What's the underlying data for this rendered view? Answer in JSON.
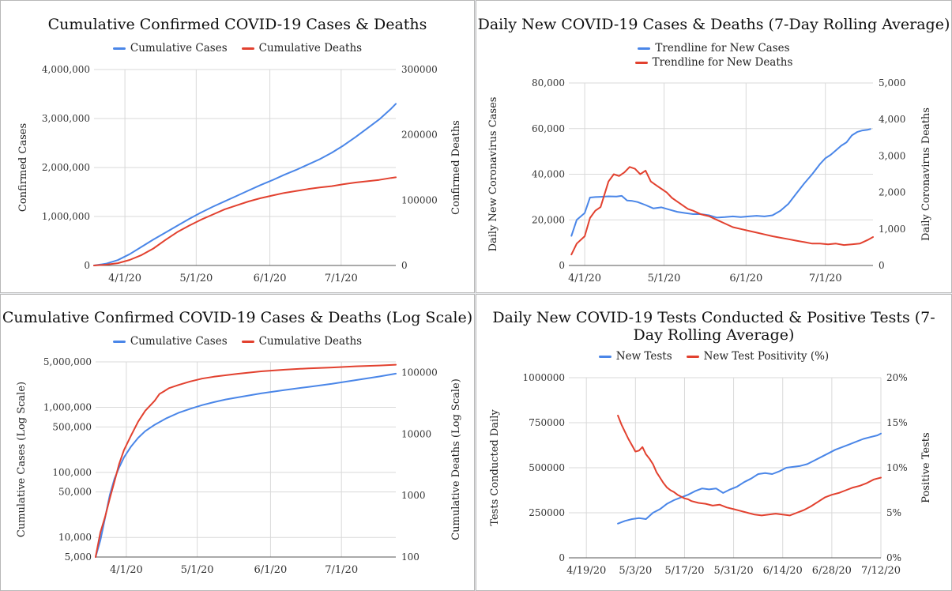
{
  "colors": {
    "cases": "#4a86e8",
    "deaths": "#e2412f"
  },
  "chart_data": [
    {
      "id": "p1",
      "type": "line",
      "title": "Cumulative Confirmed COVID-19 Cases & Deaths",
      "legend": [
        "Cumulative Cases",
        "Cumulative Deaths"
      ],
      "ylabel": "Confirmed Cases",
      "y2label": "Confirmed Deaths",
      "x_ticks": [
        "4/1/20",
        "5/1/20",
        "6/1/20",
        "7/1/20"
      ],
      "x_tick_days": [
        13,
        43,
        74,
        104
      ],
      "x_range": [
        0,
        127
      ],
      "y_ticks": [
        "0",
        "1,000,000",
        "2,000,000",
        "3,000,000",
        "4,000,000"
      ],
      "y2_ticks": [
        "0",
        "100000",
        "200000",
        "300000"
      ],
      "ylim": [
        0,
        4000000
      ],
      "y2lim": [
        0,
        300000
      ],
      "series": [
        {
          "name": "Cumulative Cases",
          "axis": "left",
          "x": [
            0,
            5,
            10,
            15,
            20,
            25,
            30,
            35,
            40,
            45,
            50,
            55,
            60,
            65,
            70,
            75,
            80,
            85,
            90,
            95,
            100,
            105,
            110,
            115,
            120,
            125,
            127
          ],
          "y": [
            0,
            35000,
            110000,
            230000,
            380000,
            530000,
            670000,
            810000,
            950000,
            1080000,
            1200000,
            1310000,
            1420000,
            1530000,
            1640000,
            1740000,
            1850000,
            1950000,
            2060000,
            2170000,
            2300000,
            2450000,
            2620000,
            2800000,
            2980000,
            3200000,
            3300000
          ]
        },
        {
          "name": "Cumulative Deaths",
          "axis": "right",
          "x": [
            0,
            5,
            10,
            15,
            20,
            25,
            30,
            35,
            40,
            45,
            50,
            55,
            60,
            65,
            70,
            75,
            80,
            85,
            90,
            95,
            100,
            105,
            110,
            115,
            120,
            125,
            127
          ],
          "y": [
            0,
            1200,
            3500,
            8500,
            16000,
            26000,
            39000,
            51000,
            61000,
            70000,
            78000,
            86000,
            92000,
            98000,
            103000,
            107000,
            111000,
            114000,
            117000,
            119500,
            121500,
            124500,
            127000,
            129000,
            131000,
            134000,
            135000
          ]
        }
      ]
    },
    {
      "id": "p2",
      "type": "line",
      "title": "Daily New COVID-19 Cases & Deaths (7-Day Rolling Average)",
      "legend": [
        "Trendline for New Cases",
        "Trendline for New Deaths"
      ],
      "ylabel": "Daily New Coronavirus Cases",
      "y2label": "Daily Coronavirus Deaths",
      "x_ticks": [
        "4/1/20",
        "5/1/20",
        "6/1/20",
        "7/1/20"
      ],
      "x_tick_days": [
        13,
        43,
        74,
        104
      ],
      "x_range": [
        7,
        122
      ],
      "y_ticks": [
        "0",
        "20,000",
        "40,000",
        "60,000",
        "80,000"
      ],
      "y2_ticks": [
        "0",
        "1,000",
        "2,000",
        "3,000",
        "4,000",
        "5,000"
      ],
      "ylim": [
        0,
        80000
      ],
      "y2lim": [
        0,
        5000
      ],
      "series": [
        {
          "name": "Trendline for New Cases",
          "axis": "left",
          "x": [
            8,
            10,
            13,
            15,
            17,
            19,
            22,
            25,
            27,
            29,
            31,
            33,
            36,
            39,
            42,
            45,
            48,
            51,
            54,
            57,
            60,
            63,
            66,
            69,
            72,
            75,
            78,
            81,
            84,
            87,
            90,
            93,
            96,
            99,
            102,
            104,
            106,
            108,
            110,
            112,
            114,
            116,
            118,
            120,
            121
          ],
          "y": [
            13000,
            20000,
            23000,
            29800,
            30000,
            30100,
            30300,
            30200,
            30500,
            28500,
            28300,
            27800,
            26500,
            25000,
            25500,
            24500,
            23500,
            23000,
            22500,
            22500,
            22000,
            21000,
            21200,
            21500,
            21200,
            21500,
            21800,
            21500,
            22000,
            24000,
            27000,
            31500,
            36000,
            40000,
            44500,
            47000,
            48500,
            50500,
            52500,
            54000,
            57000,
            58500,
            59200,
            59500,
            59800
          ]
        },
        {
          "name": "Trendline for New Deaths",
          "axis": "right",
          "x": [
            8,
            10,
            13,
            15,
            17,
            19,
            22,
            24,
            26,
            28,
            30,
            32,
            34,
            36,
            38,
            40,
            42,
            44,
            46,
            48,
            50,
            52,
            54,
            57,
            60,
            63,
            66,
            69,
            72,
            75,
            78,
            81,
            84,
            87,
            90,
            93,
            96,
            99,
            102,
            105,
            108,
            111,
            114,
            117,
            120,
            122
          ],
          "y": [
            300,
            600,
            800,
            1300,
            1500,
            1600,
            2300,
            2500,
            2450,
            2550,
            2700,
            2650,
            2500,
            2600,
            2300,
            2200,
            2100,
            2000,
            1850,
            1750,
            1650,
            1550,
            1500,
            1400,
            1350,
            1250,
            1150,
            1050,
            1000,
            950,
            900,
            850,
            800,
            760,
            720,
            680,
            640,
            600,
            600,
            580,
            600,
            560,
            580,
            600,
            700,
            780
          ]
        }
      ]
    },
    {
      "id": "p3",
      "type": "line",
      "title": "Cumulative Confirmed COVID-19 Cases & Deaths (Log Scale)",
      "legend": [
        "Cumulative Cases",
        "Cumulative Deaths"
      ],
      "ylabel": "Cumulative Cases (Log Scale)",
      "y2label": "Cumulative Deaths (Log Scale)",
      "y_scale": "log",
      "x_ticks": [
        "4/1/20",
        "5/1/20",
        "6/1/20",
        "7/1/20"
      ],
      "x_tick_days": [
        13,
        43,
        74,
        104
      ],
      "x_range": [
        0,
        127
      ],
      "y_ticks": [
        "5,000",
        "10,000",
        "50,000",
        "100,000",
        "500,000",
        "1,000,000",
        "5,000,000"
      ],
      "y_tick_values": [
        5000,
        10000,
        50000,
        100000,
        500000,
        1000000,
        5000000
      ],
      "y2_ticks": [
        "100",
        "1000",
        "10000",
        "100000"
      ],
      "y2_tick_values": [
        100,
        1000,
        10000,
        100000
      ],
      "ylim": [
        5000,
        5000000
      ],
      "y2lim": [
        100,
        150000
      ],
      "series": [
        {
          "name": "Cumulative Cases",
          "axis": "left",
          "x": [
            0,
            2,
            4,
            6,
            8,
            10,
            12,
            15,
            18,
            21,
            25,
            30,
            35,
            40,
            45,
            50,
            55,
            60,
            70,
            80,
            90,
            100,
            110,
            120,
            127
          ],
          "y": [
            5000,
            9000,
            20000,
            45000,
            80000,
            120000,
            170000,
            250000,
            340000,
            430000,
            540000,
            680000,
            820000,
            950000,
            1080000,
            1200000,
            1320000,
            1420000,
            1640000,
            1850000,
            2060000,
            2300000,
            2620000,
            2980000,
            3300000
          ]
        },
        {
          "name": "Cumulative Deaths",
          "axis": "right",
          "x": [
            0,
            2,
            4,
            6,
            8,
            10,
            12,
            15,
            18,
            21,
            25,
            27,
            29,
            31,
            35,
            40,
            45,
            50,
            60,
            70,
            80,
            90,
            100,
            110,
            120,
            127
          ],
          "y": [
            100,
            250,
            450,
            900,
            1700,
            3300,
            5500,
            9500,
            16000,
            24000,
            35000,
            45000,
            50000,
            56000,
            63000,
            72000,
            80000,
            86000,
            96000,
            105000,
            112000,
            117500,
            121500,
            127000,
            131000,
            135000
          ]
        }
      ]
    },
    {
      "id": "p4",
      "type": "line",
      "title": "Daily New COVID-19 Tests Conducted & Positive Tests (7-Day Rolling Average)",
      "legend": [
        "New Tests",
        "New Test Positivity (%)"
      ],
      "ylabel": "Tests Conducted Daily",
      "y2label": "Positive Tests",
      "x_ticks": [
        "4/19/20",
        "5/3/20",
        "5/17/20",
        "5/31/20",
        "6/14/20",
        "6/28/20",
        "7/12/20"
      ],
      "x_tick_days": [
        0,
        14,
        28,
        42,
        56,
        70,
        84
      ],
      "x_range": [
        -5,
        84
      ],
      "y_ticks": [
        "0",
        "250000",
        "500000",
        "750000",
        "1000000"
      ],
      "y2_ticks": [
        "0%",
        "5%",
        "10%",
        "15%",
        "20%"
      ],
      "ylim": [
        0,
        1000000
      ],
      "y2lim": [
        0,
        20
      ],
      "series": [
        {
          "name": "New Tests",
          "axis": "left",
          "x": [
            9,
            11,
            13,
            15,
            17,
            19,
            21,
            23,
            25,
            27,
            29,
            31,
            33,
            35,
            37,
            39,
            41,
            43,
            45,
            47,
            49,
            51,
            53,
            55,
            57,
            59,
            61,
            63,
            65,
            67,
            69,
            71,
            73,
            75,
            77,
            79,
            81,
            83,
            84
          ],
          "y": [
            190000,
            205000,
            215000,
            220000,
            215000,
            250000,
            270000,
            300000,
            320000,
            335000,
            350000,
            370000,
            385000,
            380000,
            385000,
            360000,
            380000,
            395000,
            420000,
            440000,
            465000,
            470000,
            465000,
            480000,
            500000,
            505000,
            510000,
            520000,
            540000,
            560000,
            580000,
            600000,
            615000,
            630000,
            645000,
            660000,
            670000,
            680000,
            690000
          ]
        },
        {
          "name": "New Test Positivity (%)",
          "axis": "right",
          "x": [
            9,
            10,
            11,
            12,
            13,
            14,
            15,
            16,
            17,
            18,
            19,
            20,
            21,
            22,
            23,
            24,
            25,
            26,
            27,
            28,
            29,
            30,
            32,
            34,
            36,
            38,
            40,
            42,
            44,
            46,
            48,
            50,
            52,
            54,
            56,
            58,
            60,
            62,
            64,
            66,
            68,
            70,
            72,
            74,
            76,
            78,
            80,
            82,
            84
          ],
          "y": [
            15.8,
            14.8,
            14.0,
            13.2,
            12.5,
            11.8,
            11.9,
            12.3,
            11.5,
            11.0,
            10.4,
            9.5,
            8.9,
            8.3,
            7.8,
            7.5,
            7.3,
            7.0,
            6.8,
            6.6,
            6.5,
            6.3,
            6.1,
            6.0,
            5.8,
            5.9,
            5.6,
            5.4,
            5.2,
            5.0,
            4.8,
            4.7,
            4.8,
            4.9,
            4.8,
            4.7,
            5.0,
            5.3,
            5.7,
            6.2,
            6.7,
            7.0,
            7.2,
            7.5,
            7.8,
            8.0,
            8.3,
            8.7,
            8.9
          ]
        }
      ]
    }
  ]
}
